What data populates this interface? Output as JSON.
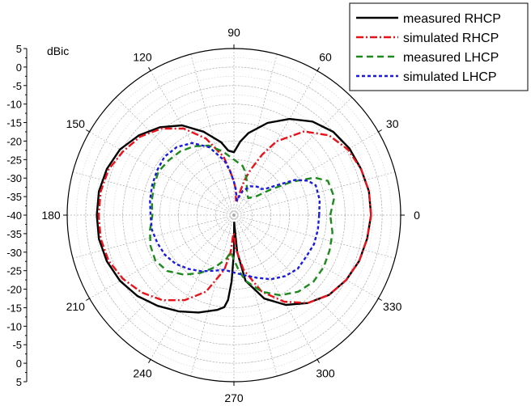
{
  "chart_data": {
    "type": "polar-line",
    "unit_label": "dBic",
    "r_axis": {
      "min": -40,
      "max": 5,
      "ticks": [
        5,
        0,
        -5,
        -10,
        -15,
        -20,
        -25,
        -30,
        -35,
        -40
      ]
    },
    "angle_ticks": [
      0,
      30,
      60,
      90,
      120,
      150,
      180,
      210,
      240,
      270,
      300,
      330
    ],
    "grid": true,
    "legend": {
      "position": "top-right",
      "entries": [
        "measured RHCP",
        "simulated RHCP",
        "measured LHCP",
        "simulated LHCP"
      ]
    },
    "series": [
      {
        "name": "measured RHCP",
        "color": "#000000",
        "dash": "solid",
        "points": [
          [
            0,
            -3
          ],
          [
            10,
            -3
          ],
          [
            20,
            -3.5
          ],
          [
            30,
            -4
          ],
          [
            40,
            -5
          ],
          [
            50,
            -7
          ],
          [
            60,
            -10
          ],
          [
            70,
            -13.5
          ],
          [
            80,
            -17.5
          ],
          [
            85,
            -20
          ],
          [
            90,
            -23
          ],
          [
            95,
            -22.5
          ],
          [
            100,
            -20
          ],
          [
            110,
            -16
          ],
          [
            120,
            -12
          ],
          [
            130,
            -9
          ],
          [
            140,
            -6.5
          ],
          [
            150,
            -4.5
          ],
          [
            160,
            -3.5
          ],
          [
            170,
            -3
          ],
          [
            180,
            -3
          ],
          [
            190,
            -3
          ],
          [
            200,
            -3.5
          ],
          [
            210,
            -4.5
          ],
          [
            220,
            -6
          ],
          [
            230,
            -8
          ],
          [
            240,
            -10
          ],
          [
            250,
            -12
          ],
          [
            260,
            -14
          ],
          [
            264,
            -15
          ],
          [
            266,
            -17
          ],
          [
            268,
            -22
          ],
          [
            270,
            -30
          ],
          [
            272,
            -38
          ],
          [
            275,
            -30
          ],
          [
            280,
            -22
          ],
          [
            290,
            -16
          ],
          [
            300,
            -12
          ],
          [
            310,
            -9
          ],
          [
            320,
            -6.5
          ],
          [
            330,
            -5
          ],
          [
            340,
            -4
          ],
          [
            350,
            -3.5
          ],
          [
            360,
            -3
          ]
        ]
      },
      {
        "name": "simulated RHCP",
        "color": "#e8121a",
        "dash": "dashdot",
        "points": [
          [
            0,
            -3
          ],
          [
            10,
            -3
          ],
          [
            20,
            -3.5
          ],
          [
            30,
            -4.5
          ],
          [
            40,
            -6.5
          ],
          [
            50,
            -10.5
          ],
          [
            60,
            -17
          ],
          [
            65,
            -22
          ],
          [
            70,
            -27
          ],
          [
            73,
            -30
          ],
          [
            75,
            -33
          ],
          [
            78,
            -36
          ],
          [
            82,
            -36
          ],
          [
            86,
            -33
          ],
          [
            90,
            -31
          ],
          [
            95,
            -28
          ],
          [
            100,
            -24
          ],
          [
            110,
            -18
          ],
          [
            120,
            -13
          ],
          [
            130,
            -9.5
          ],
          [
            140,
            -7
          ],
          [
            150,
            -5.5
          ],
          [
            160,
            -4
          ],
          [
            170,
            -3.5
          ],
          [
            180,
            -3.5
          ],
          [
            190,
            -3.5
          ],
          [
            200,
            -4
          ],
          [
            210,
            -5.5
          ],
          [
            220,
            -7.5
          ],
          [
            230,
            -10
          ],
          [
            240,
            -13.5
          ],
          [
            250,
            -18
          ],
          [
            260,
            -25
          ],
          [
            265,
            -30
          ],
          [
            268,
            -35
          ],
          [
            270,
            -35
          ],
          [
            273,
            -31
          ],
          [
            280,
            -25
          ],
          [
            290,
            -18
          ],
          [
            300,
            -13
          ],
          [
            310,
            -9
          ],
          [
            320,
            -6.5
          ],
          [
            330,
            -5
          ],
          [
            340,
            -4
          ],
          [
            350,
            -3.5
          ],
          [
            360,
            -3
          ]
        ]
      },
      {
        "name": "measured LHCP",
        "color": "#1e8a1e",
        "dash": "dash",
        "points": [
          [
            0,
            -14
          ],
          [
            10,
            -12.5
          ],
          [
            20,
            -13
          ],
          [
            25,
            -16
          ],
          [
            30,
            -22
          ],
          [
            35,
            -28
          ],
          [
            40,
            -32
          ],
          [
            50,
            -34
          ],
          [
            60,
            -33
          ],
          [
            70,
            -30
          ],
          [
            75,
            -28
          ],
          [
            80,
            -26.5
          ],
          [
            90,
            -25
          ],
          [
            100,
            -22.5
          ],
          [
            110,
            -20
          ],
          [
            120,
            -18.5
          ],
          [
            130,
            -17.5
          ],
          [
            140,
            -17
          ],
          [
            150,
            -16.5
          ],
          [
            160,
            -17
          ],
          [
            170,
            -17.5
          ],
          [
            180,
            -18
          ],
          [
            190,
            -17
          ],
          [
            200,
            -16
          ],
          [
            210,
            -15.5
          ],
          [
            220,
            -16.5
          ],
          [
            230,
            -19
          ],
          [
            240,
            -22
          ],
          [
            250,
            -25
          ],
          [
            260,
            -28
          ],
          [
            265,
            -30
          ],
          [
            270,
            -28
          ],
          [
            275,
            -25
          ],
          [
            280,
            -22
          ],
          [
            290,
            -18
          ],
          [
            300,
            -15
          ],
          [
            310,
            -13
          ],
          [
            320,
            -12
          ],
          [
            330,
            -12
          ],
          [
            340,
            -12.5
          ],
          [
            350,
            -13
          ],
          [
            360,
            -14
          ]
        ]
      },
      {
        "name": "simulated LHCP",
        "color": "#1a1ae0",
        "dash": "dot",
        "points": [
          [
            0,
            -17
          ],
          [
            10,
            -16.5
          ],
          [
            20,
            -16.5
          ],
          [
            25,
            -18
          ],
          [
            30,
            -21
          ],
          [
            35,
            -26
          ],
          [
            40,
            -29
          ],
          [
            45,
            -30
          ],
          [
            50,
            -30
          ],
          [
            60,
            -31
          ],
          [
            70,
            -33
          ],
          [
            75,
            -35
          ],
          [
            78,
            -36
          ],
          [
            82,
            -35
          ],
          [
            86,
            -33
          ],
          [
            90,
            -31
          ],
          [
            95,
            -28
          ],
          [
            100,
            -25
          ],
          [
            110,
            -20.5
          ],
          [
            120,
            -17.5
          ],
          [
            130,
            -16
          ],
          [
            140,
            -15.5
          ],
          [
            150,
            -16
          ],
          [
            160,
            -16.5
          ],
          [
            170,
            -17
          ],
          [
            180,
            -17.5
          ],
          [
            190,
            -17.5
          ],
          [
            200,
            -18
          ],
          [
            210,
            -18.5
          ],
          [
            220,
            -19.5
          ],
          [
            230,
            -21
          ],
          [
            240,
            -22.5
          ],
          [
            250,
            -24
          ],
          [
            260,
            -25
          ],
          [
            270,
            -24.5
          ],
          [
            280,
            -23.5
          ],
          [
            290,
            -22
          ],
          [
            300,
            -20
          ],
          [
            310,
            -18.5
          ],
          [
            320,
            -17.5
          ],
          [
            330,
            -17.5
          ],
          [
            340,
            -17
          ],
          [
            350,
            -17
          ],
          [
            360,
            -17
          ]
        ]
      }
    ]
  }
}
